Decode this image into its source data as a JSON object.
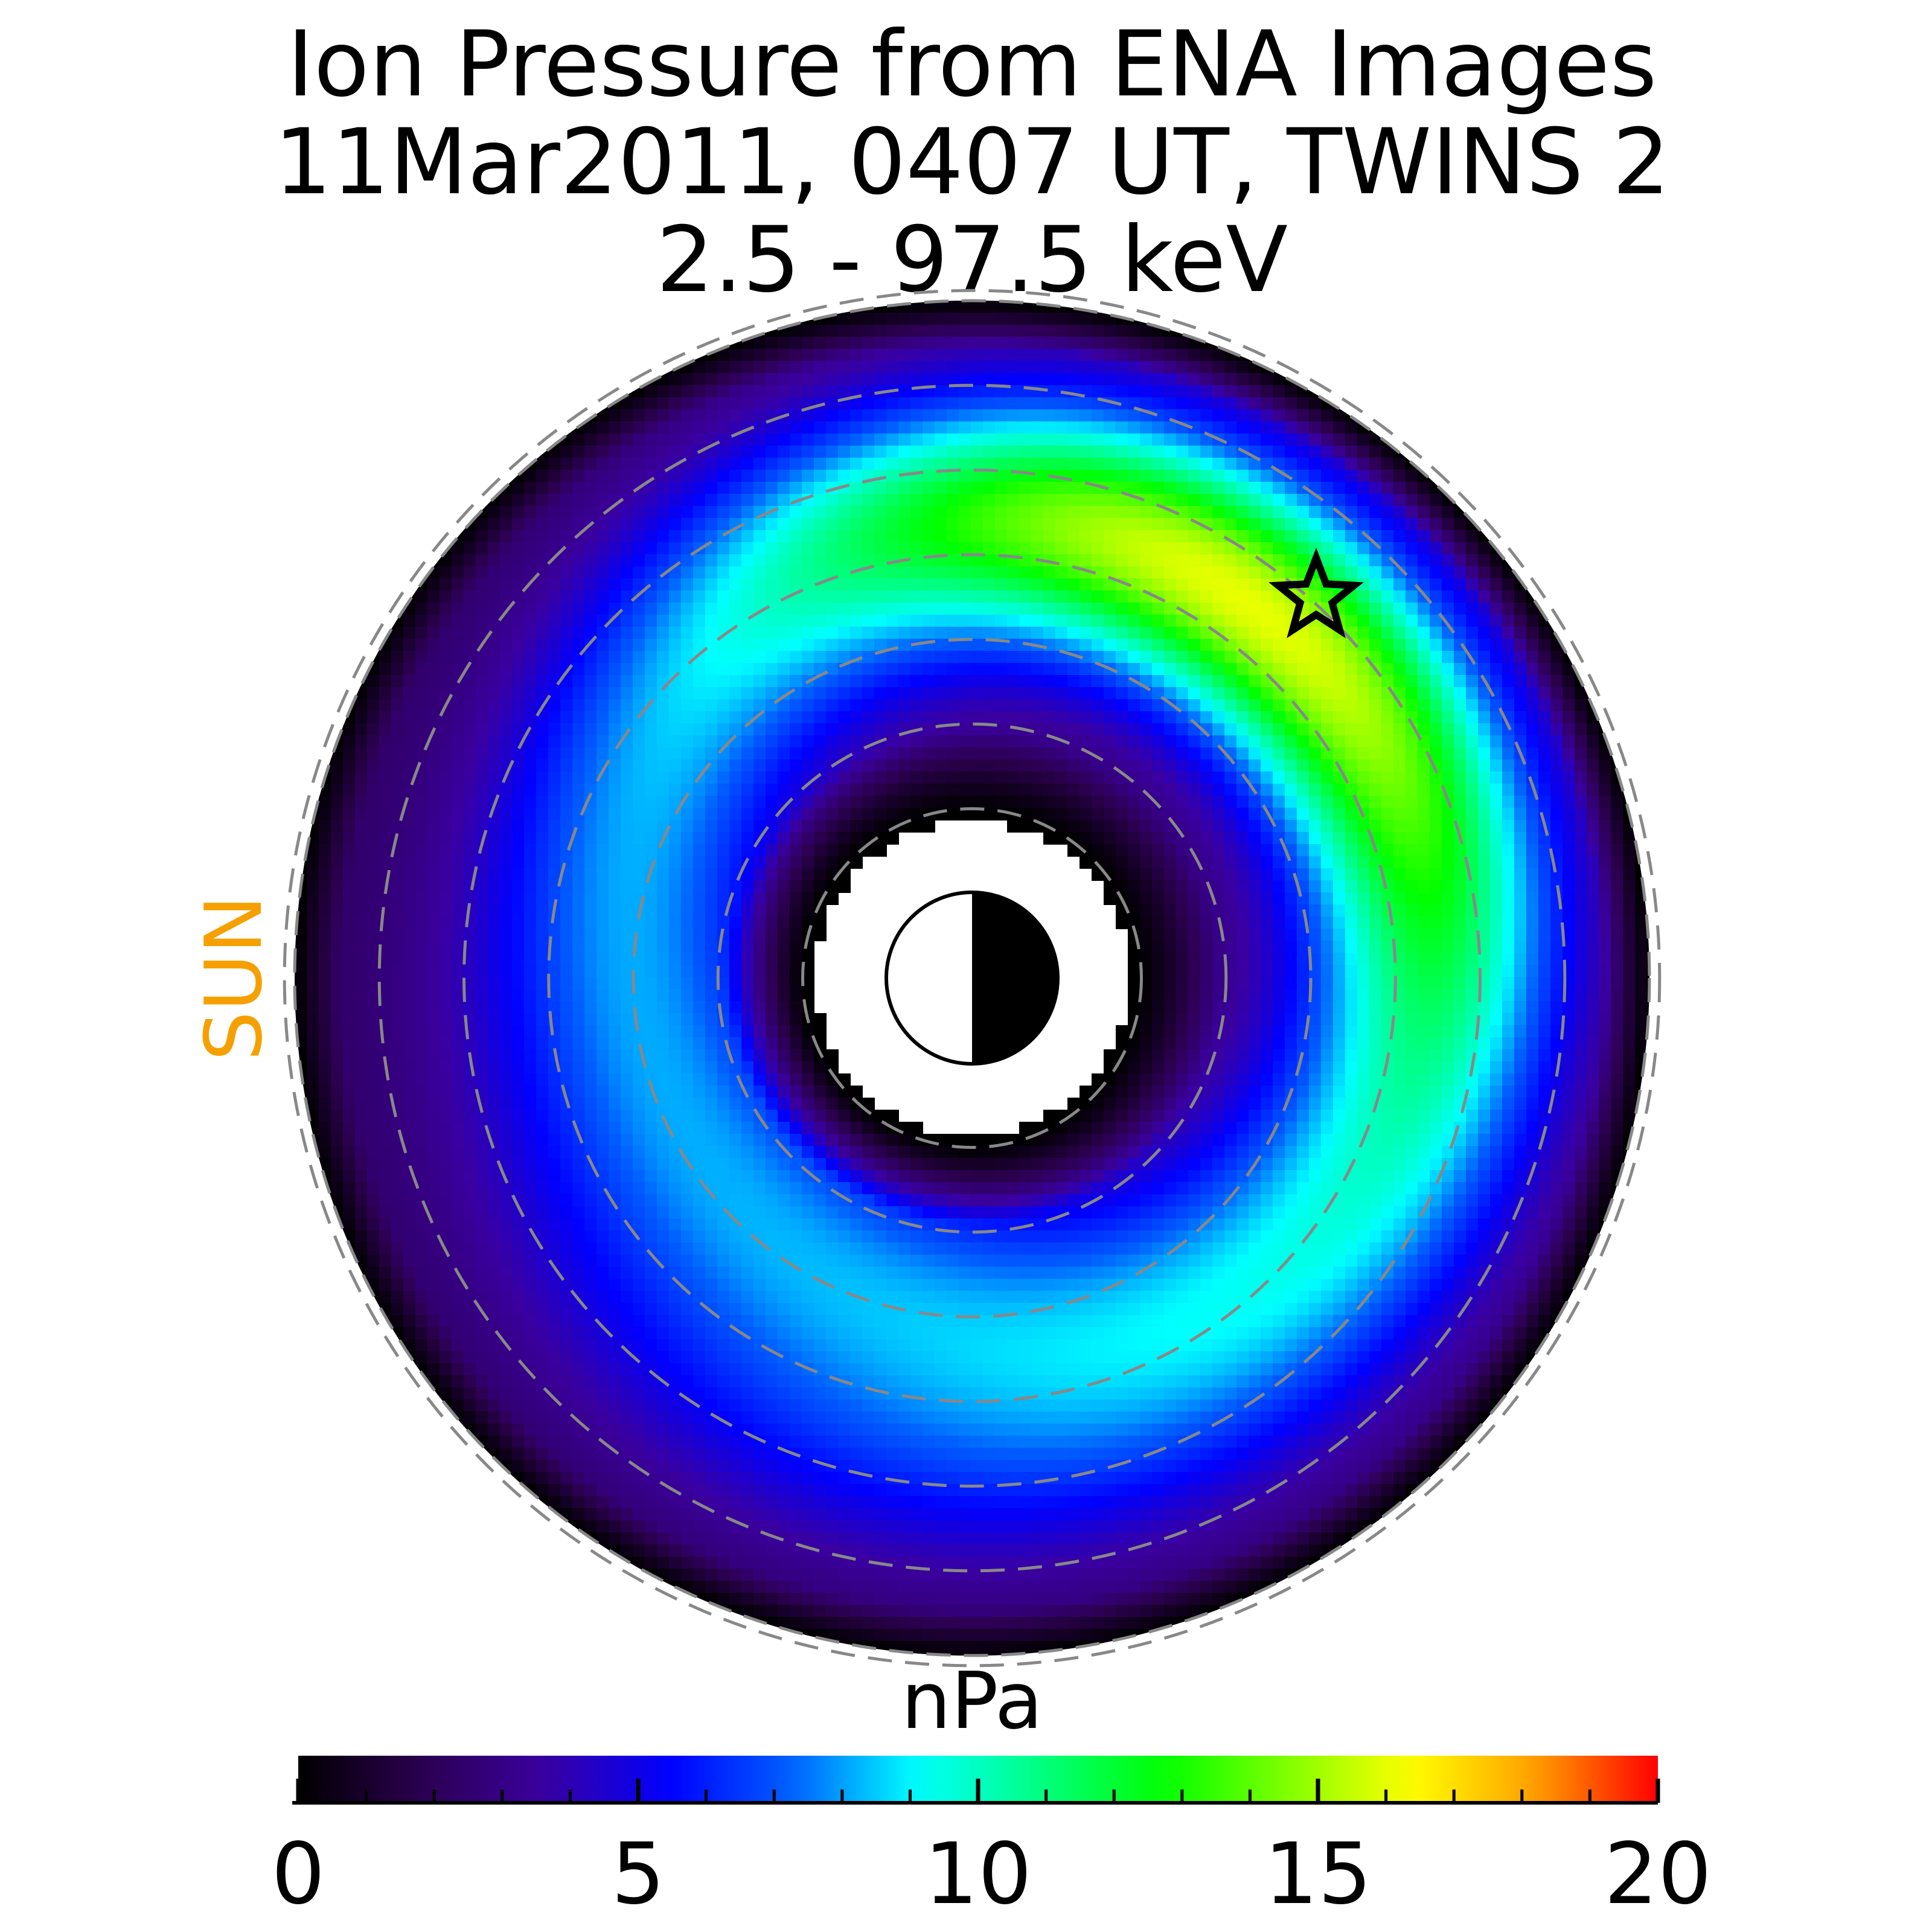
{
  "chart_data": {
    "type": "heatmap",
    "projection": "polar (equatorial plane, noon toward the Sun on the left)",
    "title": [
      "Ion Pressure from  ENA Images",
      "11Mar2011, 0407 UT,  TWINS 2",
      "2.5 - 97.5 keV"
    ],
    "sun_label": "SUN",
    "colorbar": {
      "label": "nPa",
      "range": [
        0,
        20
      ],
      "ticks": [
        0,
        5,
        10,
        15,
        20
      ],
      "tick_labels": [
        "0",
        "5",
        "10",
        "15",
        "20"
      ],
      "minor_step": 1,
      "colormap": [
        "#000000",
        "#2c0050",
        "#3a00a0",
        "#0000ff",
        "#0060ff",
        "#00ffff",
        "#00ff80",
        "#00ff00",
        "#80ff00",
        "#ffff00",
        "#ffa000",
        "#ff0000"
      ]
    },
    "radial_rings_re": [
      2,
      3,
      4,
      5,
      6,
      7,
      8
    ],
    "inner_boundary_re": 2,
    "outer_boundary_re": 8,
    "field": {
      "description": "ring-current ion pressure distribution",
      "peak_value": 16,
      "peak_mlt": "dusk (upper-right)",
      "peak_r_re": 5.5
    },
    "marker": {
      "type": "star",
      "location": "pressure peak"
    },
    "earth_symbol": "day side white toward Sun, night side black",
    "colors": {
      "ring_lines": "#888888",
      "sun_text": "#f5a000",
      "background": "#ffffff"
    }
  }
}
